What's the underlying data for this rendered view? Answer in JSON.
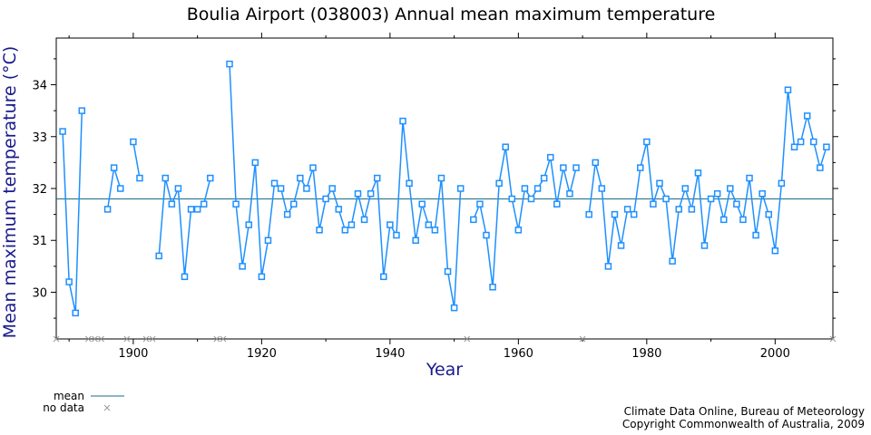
{
  "chart_data": {
    "type": "line",
    "title": "Boulia Airport (038003) Annual mean maximum temperature",
    "xlabel": "Year",
    "ylabel": "Mean maximum temperature (°C)",
    "xlim": [
      1888,
      2009
    ],
    "ylim": [
      29.1,
      34.9
    ],
    "x_ticks": [
      1900,
      1920,
      1940,
      1960,
      1980,
      2000
    ],
    "y_ticks": [
      30,
      31,
      32,
      33,
      34
    ],
    "mean": 31.8,
    "series": [
      {
        "name": "",
        "color": "#1e90ff",
        "points": [
          [
            1889,
            33.1
          ],
          [
            1890,
            30.2
          ],
          [
            1891,
            29.6
          ],
          [
            1892,
            33.5
          ],
          [
            1896,
            31.6
          ],
          [
            1897,
            32.4
          ],
          [
            1898,
            32.0
          ],
          [
            1900,
            32.9
          ],
          [
            1901,
            32.2
          ],
          [
            1904,
            30.7
          ],
          [
            1905,
            32.2
          ],
          [
            1906,
            31.7
          ],
          [
            1907,
            32.0
          ],
          [
            1908,
            30.3
          ],
          [
            1909,
            31.6
          ],
          [
            1910,
            31.6
          ],
          [
            1911,
            31.7
          ],
          [
            1912,
            32.2
          ],
          [
            1915,
            34.4
          ],
          [
            1916,
            31.7
          ],
          [
            1917,
            30.5
          ],
          [
            1918,
            31.3
          ],
          [
            1919,
            32.5
          ],
          [
            1920,
            30.3
          ],
          [
            1921,
            31.0
          ],
          [
            1922,
            32.1
          ],
          [
            1923,
            32.0
          ],
          [
            1924,
            31.5
          ],
          [
            1925,
            31.7
          ],
          [
            1926,
            32.2
          ],
          [
            1927,
            32.0
          ],
          [
            1928,
            32.4
          ],
          [
            1929,
            31.2
          ],
          [
            1930,
            31.8
          ],
          [
            1931,
            32.0
          ],
          [
            1932,
            31.6
          ],
          [
            1933,
            31.2
          ],
          [
            1934,
            31.3
          ],
          [
            1935,
            31.9
          ],
          [
            1936,
            31.4
          ],
          [
            1937,
            31.9
          ],
          [
            1938,
            32.2
          ],
          [
            1939,
            30.3
          ],
          [
            1940,
            31.3
          ],
          [
            1941,
            31.1
          ],
          [
            1942,
            33.3
          ],
          [
            1943,
            32.1
          ],
          [
            1944,
            31.0
          ],
          [
            1945,
            31.7
          ],
          [
            1946,
            31.3
          ],
          [
            1947,
            31.2
          ],
          [
            1948,
            32.2
          ],
          [
            1949,
            30.4
          ],
          [
            1950,
            29.7
          ],
          [
            1951,
            32.0
          ],
          [
            1953,
            31.4
          ],
          [
            1954,
            31.7
          ],
          [
            1955,
            31.1
          ],
          [
            1956,
            30.1
          ],
          [
            1957,
            32.1
          ],
          [
            1958,
            32.8
          ],
          [
            1959,
            31.8
          ],
          [
            1960,
            31.2
          ],
          [
            1961,
            32.0
          ],
          [
            1962,
            31.8
          ],
          [
            1963,
            32.0
          ],
          [
            1964,
            32.2
          ],
          [
            1965,
            32.6
          ],
          [
            1966,
            31.7
          ],
          [
            1967,
            32.4
          ],
          [
            1968,
            31.9
          ],
          [
            1969,
            32.4
          ],
          [
            1971,
            31.5
          ],
          [
            1972,
            32.5
          ],
          [
            1973,
            32.0
          ],
          [
            1974,
            30.5
          ],
          [
            1975,
            31.5
          ],
          [
            1976,
            30.9
          ],
          [
            1977,
            31.6
          ],
          [
            1978,
            31.5
          ],
          [
            1979,
            32.4
          ],
          [
            1980,
            32.9
          ],
          [
            1981,
            31.7
          ],
          [
            1982,
            32.1
          ],
          [
            1983,
            31.8
          ],
          [
            1984,
            30.6
          ],
          [
            1985,
            31.6
          ],
          [
            1986,
            32.0
          ],
          [
            1987,
            31.6
          ],
          [
            1988,
            32.3
          ],
          [
            1989,
            30.9
          ],
          [
            1990,
            31.8
          ],
          [
            1991,
            31.9
          ],
          [
            1992,
            31.4
          ],
          [
            1993,
            32.0
          ],
          [
            1994,
            31.7
          ],
          [
            1995,
            31.4
          ],
          [
            1996,
            32.2
          ],
          [
            1997,
            31.1
          ],
          [
            1998,
            31.9
          ],
          [
            1999,
            31.5
          ],
          [
            2000,
            30.8
          ],
          [
            2001,
            32.1
          ],
          [
            2002,
            33.9
          ],
          [
            2003,
            32.8
          ],
          [
            2004,
            32.9
          ],
          [
            2005,
            33.4
          ],
          [
            2006,
            32.9
          ],
          [
            2007,
            32.4
          ],
          [
            2008,
            32.8
          ]
        ]
      }
    ],
    "no_data_years": [
      1888,
      1893,
      1894,
      1895,
      1899,
      1902,
      1903,
      1913,
      1914,
      1952,
      1970,
      2009
    ],
    "legend": {
      "position": "bottom-left",
      "entries": [
        {
          "label": "mean",
          "symbol": "line",
          "color": "#1a6b8a"
        },
        {
          "label": "no data",
          "symbol": "x",
          "color": "#999999"
        }
      ]
    },
    "grid": false
  },
  "credits": {
    "line1": "Climate Data Online, Bureau of Meteorology",
    "line2": "Copyright Commonwealth of Australia, 2009"
  }
}
